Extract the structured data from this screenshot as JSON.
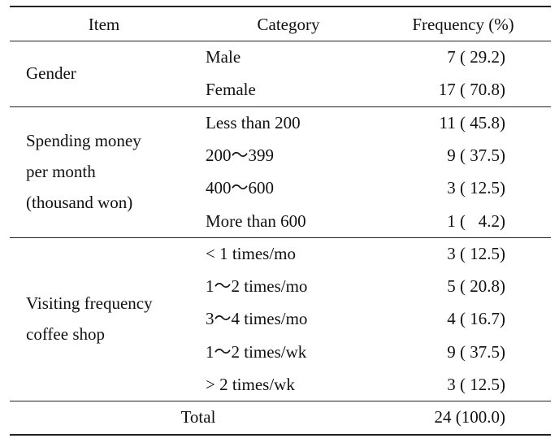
{
  "table": {
    "header": [
      "Item",
      "Category",
      "Frequency (%)"
    ],
    "groups": [
      {
        "item": [
          "Gender"
        ],
        "rows": [
          [
            "Male",
            "7 ( 29.2)"
          ],
          [
            "Female",
            "17 ( 70.8)"
          ]
        ]
      },
      {
        "item": [
          "Spending money",
          "per month",
          "(thousand won)"
        ],
        "rows": [
          [
            "Less than 200",
            "11 ( 45.8)"
          ],
          [
            "200～399",
            "9 ( 37.5)"
          ],
          [
            "400～600",
            "3 ( 12.5)"
          ],
          [
            "More than 600",
            "1 (   4.2)"
          ]
        ]
      },
      {
        "item": [
          "Visiting frequency",
          "coffee shop"
        ],
        "rows": [
          [
            "< 1 times/mo",
            "3 ( 12.5)"
          ],
          [
            "1～2 times/mo",
            "5 ( 20.8)"
          ],
          [
            "3～4 times/mo",
            "4 ( 16.7)"
          ],
          [
            "1～2 times/wk",
            "9 ( 37.5)"
          ],
          [
            "> 2 times/wk",
            "3 ( 12.5)"
          ]
        ]
      }
    ],
    "total": [
      "Total",
      "24 (100.0)"
    ]
  }
}
